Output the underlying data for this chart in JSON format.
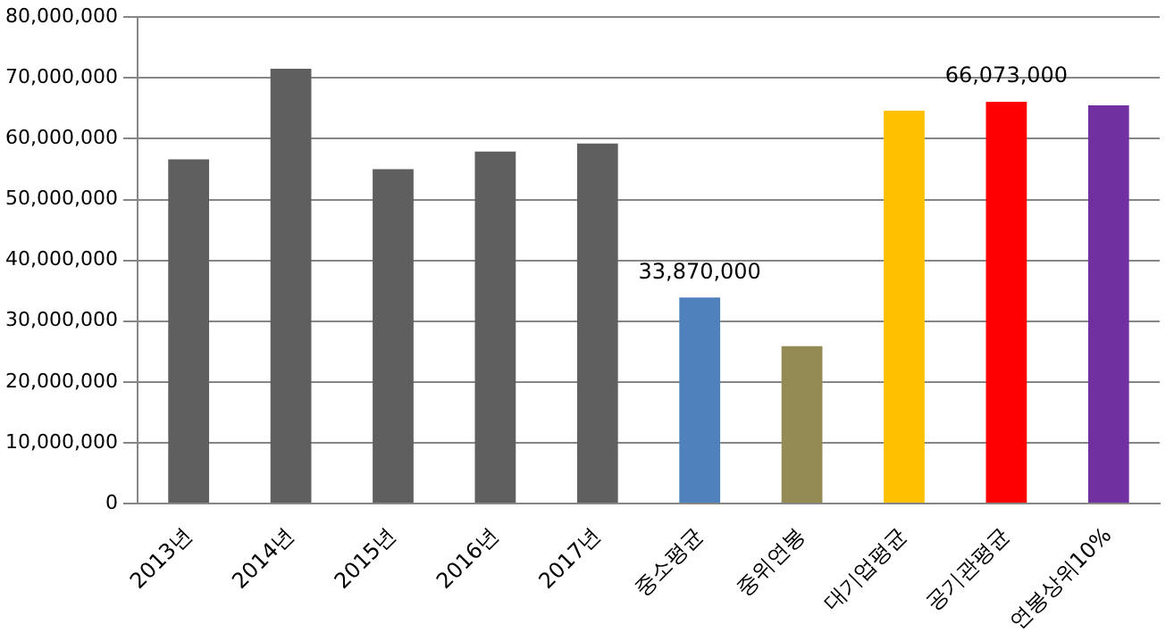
{
  "chart_data": {
    "type": "bar",
    "categories": [
      "2013년",
      "2014년",
      "2015년",
      "2016년",
      "2017년",
      "중소평균",
      "중위연봉",
      "대기업평균",
      "공기관평균",
      "연봉상위10%"
    ],
    "values": [
      56600000,
      71500000,
      55000000,
      57900000,
      59200000,
      33870000,
      25900000,
      64600000,
      66073000,
      65500000
    ],
    "colors": [
      "#5f5f5f",
      "#5f5f5f",
      "#5f5f5f",
      "#5f5f5f",
      "#5f5f5f",
      "#4f81bd",
      "#948a54",
      "#ffc000",
      "#ff0000",
      "#7030a0"
    ],
    "value_labels": [
      null,
      null,
      null,
      null,
      null,
      "33,870,000",
      null,
      null,
      "66,073,000",
      null
    ],
    "ylim": [
      0,
      80000000
    ],
    "yticks": [
      {
        "value": 0,
        "label": "0"
      },
      {
        "value": 10000000,
        "label": "10,000,000"
      },
      {
        "value": 20000000,
        "label": "20,000,000"
      },
      {
        "value": 30000000,
        "label": "30,000,000"
      },
      {
        "value": 40000000,
        "label": "40,000,000"
      },
      {
        "value": 50000000,
        "label": "50,000,000"
      },
      {
        "value": 60000000,
        "label": "60,000,000"
      },
      {
        "value": 70000000,
        "label": "70,000,000"
      },
      {
        "value": 80000000,
        "label": "80,000,000"
      }
    ],
    "grid": "y",
    "legend": false
  }
}
